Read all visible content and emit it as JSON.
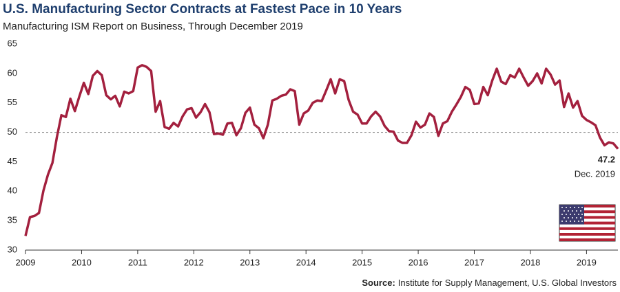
{
  "chart_data": {
    "type": "line",
    "title": "U.S. Manufacturing Sector Contracts at Fastest Pace in 10 Years",
    "subtitle": "Manufacturing ISM Report on Business, Through December 2019",
    "source_label": "Source:",
    "source": "Institute for Supply Management, U.S. Global Investors",
    "annotation_date": "Dec. 2019",
    "reference_line": 50,
    "xlim": [
      2009,
      2019.56
    ],
    "xticks": [
      2009,
      2010,
      2011,
      2012,
      2013,
      2014,
      2015,
      2016,
      2017,
      2018,
      2019
    ],
    "ylim": [
      30,
      65
    ],
    "yticks": [
      30,
      35,
      40,
      45,
      50,
      55,
      60,
      65
    ],
    "x": [
      2009,
      2009.08,
      2009.16,
      2009.24,
      2009.32,
      2009.4,
      2009.48,
      2009.56,
      2009.64,
      2009.72,
      2009.8,
      2009.88,
      2009.96,
      2010.04,
      2010.12,
      2010.2,
      2010.28,
      2010.36,
      2010.44,
      2010.52,
      2010.6,
      2010.68,
      2010.76,
      2010.84,
      2010.92,
      2011,
      2011.08,
      2011.16,
      2011.24,
      2011.32,
      2011.4,
      2011.48,
      2011.56,
      2011.64,
      2011.72,
      2011.8,
      2011.88,
      2011.96,
      2012.04,
      2012.12,
      2012.2,
      2012.28,
      2012.36,
      2012.44,
      2012.52,
      2012.6,
      2012.68,
      2012.76,
      2012.84,
      2012.92,
      2013,
      2013.08,
      2013.16,
      2013.24,
      2013.32,
      2013.4,
      2013.48,
      2013.56,
      2013.64,
      2013.72,
      2013.8,
      2013.88,
      2013.96,
      2014.04,
      2014.12,
      2014.2,
      2014.28,
      2014.36,
      2014.44,
      2014.52,
      2014.6,
      2014.68,
      2014.76,
      2014.84,
      2014.92,
      2015,
      2015.08,
      2015.16,
      2015.24,
      2015.32,
      2015.4,
      2015.48,
      2015.56,
      2015.64,
      2015.72,
      2015.8,
      2015.88,
      2015.96,
      2016.04,
      2016.12,
      2016.2,
      2016.28,
      2016.36,
      2016.44,
      2016.52,
      2016.6,
      2016.68,
      2016.76,
      2016.84,
      2016.92,
      2017,
      2017.08,
      2017.16,
      2017.24,
      2017.32,
      2017.4,
      2017.48,
      2017.56,
      2017.64,
      2017.72,
      2017.8,
      2017.88,
      2017.96,
      2018.04,
      2018.12,
      2018.2,
      2018.28,
      2018.36,
      2018.44,
      2018.52,
      2018.6,
      2018.68,
      2018.76,
      2018.84,
      2018.92,
      2019,
      2019.08,
      2019.16,
      2019.24,
      2019.32,
      2019.4,
      2019.48,
      2019.56
    ],
    "series": [
      {
        "name": "Manufacturing ISM",
        "color": "#a3203e",
        "values": [
          32.4,
          35.6,
          35.8,
          36.3,
          40.1,
          42.8,
          44.8,
          49.2,
          52.9,
          52.6,
          55.7,
          53.6,
          56.1,
          58.4,
          56.5,
          59.6,
          60.4,
          59.7,
          56.3,
          55.6,
          56.2,
          54.4,
          56.9,
          56.6,
          57.0,
          61.0,
          61.4,
          61.1,
          60.4,
          53.5,
          55.3,
          50.9,
          50.6,
          51.6,
          51.0,
          52.7,
          53.9,
          54.1,
          52.5,
          53.4,
          54.8,
          53.4,
          49.7,
          49.8,
          49.6,
          51.5,
          51.6,
          49.5,
          50.7,
          53.3,
          54.2,
          51.3,
          50.7,
          49.0,
          51.3,
          55.4,
          55.7,
          56.2,
          56.4,
          57.3,
          57.0,
          51.3,
          53.2,
          53.7,
          55.0,
          55.4,
          55.3,
          57.1,
          59.0,
          56.6,
          59.0,
          58.7,
          55.5,
          53.5,
          53.0,
          51.5,
          51.5,
          52.7,
          53.5,
          52.7,
          51.1,
          50.2,
          50.1,
          48.6,
          48.2,
          48.2,
          49.5,
          51.8,
          50.8,
          51.3,
          53.2,
          52.6,
          49.4,
          51.5,
          51.9,
          53.5,
          54.7,
          56.0,
          57.7,
          57.2,
          54.8,
          54.9,
          57.7,
          56.3,
          58.8,
          60.8,
          58.6,
          58.2,
          59.7,
          59.3,
          60.8,
          59.3,
          57.9,
          58.7,
          60.0,
          58.3,
          60.8,
          59.8,
          58.1,
          58.8,
          54.3,
          56.6,
          54.2,
          55.3,
          52.8,
          52.1,
          51.7,
          51.2,
          49.1,
          47.8,
          48.3,
          48.1,
          47.2
        ]
      }
    ]
  }
}
